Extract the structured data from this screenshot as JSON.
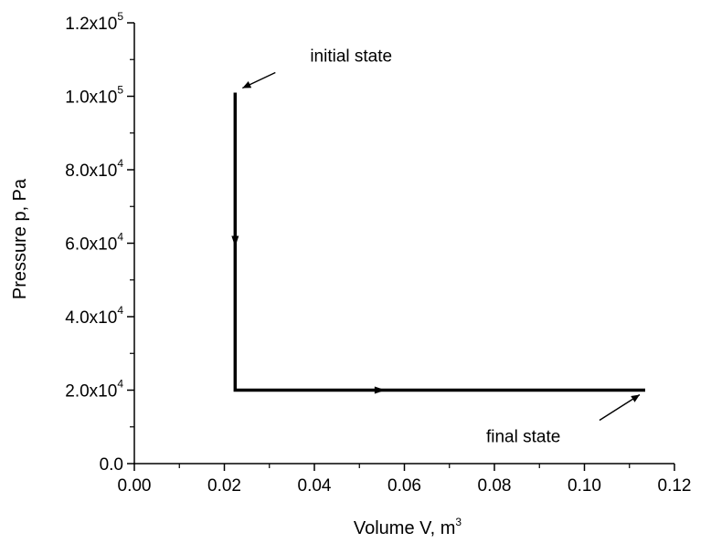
{
  "chart_data": {
    "type": "line",
    "title": "",
    "xlabel": "Volume V, m",
    "xlabel_superscript": "3",
    "ylabel": "Pressure p, Pa",
    "xlim": [
      0.0,
      0.12
    ],
    "ylim": [
      0.0,
      120000
    ],
    "x_ticks": [
      {
        "value": 0.0,
        "label": "0.00"
      },
      {
        "value": 0.02,
        "label": "0.02"
      },
      {
        "value": 0.04,
        "label": "0.04"
      },
      {
        "value": 0.06,
        "label": "0.06"
      },
      {
        "value": 0.08,
        "label": "0.08"
      },
      {
        "value": 0.1,
        "label": "0.10"
      },
      {
        "value": 0.12,
        "label": "0.12"
      }
    ],
    "y_ticks": [
      {
        "value": 0,
        "mantissa": "0.0",
        "exponent": ""
      },
      {
        "value": 20000,
        "mantissa": "2.0x10",
        "exponent": "4"
      },
      {
        "value": 40000,
        "mantissa": "4.0x10",
        "exponent": "4"
      },
      {
        "value": 60000,
        "mantissa": "6.0x10",
        "exponent": "4"
      },
      {
        "value": 80000,
        "mantissa": "8.0x10",
        "exponent": "4"
      },
      {
        "value": 100000,
        "mantissa": "1.0x10",
        "exponent": "5"
      },
      {
        "value": 120000,
        "mantissa": "1.2x10",
        "exponent": "5"
      }
    ],
    "grid": false,
    "series": [
      {
        "x": [
          0.0224,
          0.0224,
          0.1135
        ],
        "y": [
          101000,
          20000,
          20000
        ],
        "color": "#000000",
        "direction_arrows": [
          {
            "x": 0.0224,
            "y": 60000,
            "dir": "down"
          },
          {
            "x": 0.055,
            "y": 20000,
            "dir": "right"
          }
        ]
      }
    ],
    "annotations": [
      {
        "text": "initial state",
        "point": [
          0.0224,
          101000
        ],
        "label_position": "upper-right"
      },
      {
        "text": "final state",
        "point": [
          0.1135,
          20000
        ],
        "label_position": "lower-left"
      }
    ]
  }
}
